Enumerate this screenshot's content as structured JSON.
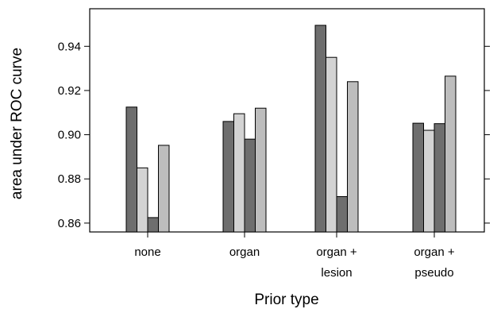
{
  "chart_data": {
    "type": "bar",
    "title": "",
    "xlabel": "Prior type",
    "ylabel": "area under ROC curve",
    "categories": [
      [
        "none"
      ],
      [
        "organ"
      ],
      [
        "organ +",
        "lesion"
      ],
      [
        "organ +",
        "pseudo"
      ]
    ],
    "series": [
      {
        "values": [
          0.9125,
          0.906,
          0.9495,
          0.9052
        ]
      },
      {
        "values": [
          0.885,
          0.9095,
          0.935,
          0.902
        ]
      },
      {
        "values": [
          0.8625,
          0.898,
          0.872,
          0.905
        ]
      },
      {
        "values": [
          0.8952,
          0.912,
          0.924,
          0.9265
        ]
      }
    ],
    "bar_colors": [
      "#6e6e6e",
      "#d3d3d3",
      "#6e6e6e",
      "#bdbdbd"
    ],
    "ylim": [
      0.856,
      0.957
    ],
    "yticks": [
      0.86,
      0.88,
      0.9,
      0.92,
      0.94
    ],
    "ytick_labels": [
      "0.86",
      "0.88",
      "0.90",
      "0.92",
      "0.94"
    ],
    "grid": false,
    "legend": "none"
  }
}
